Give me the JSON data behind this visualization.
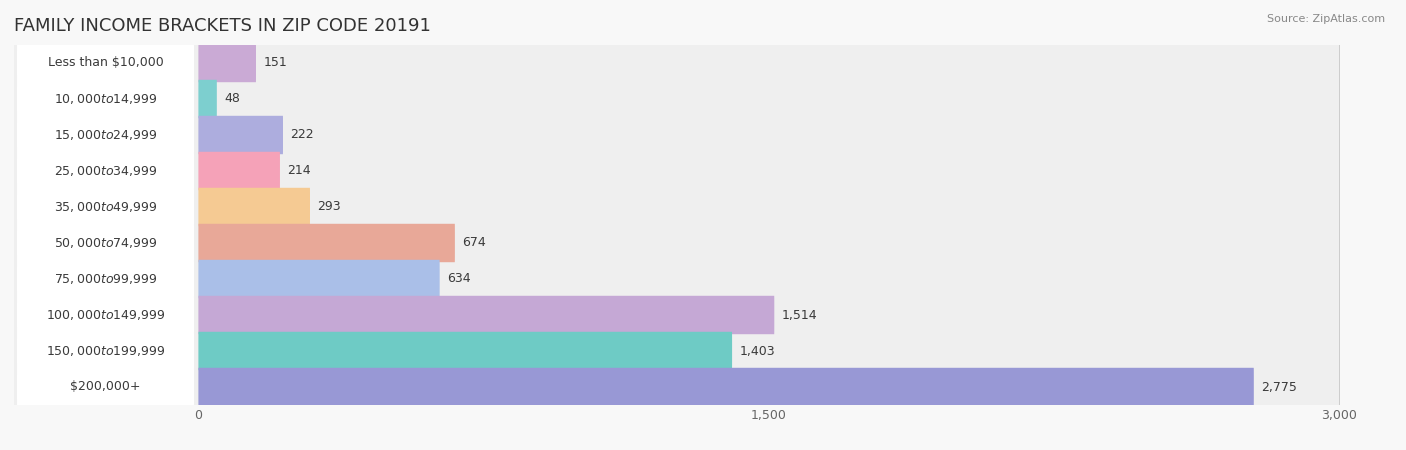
{
  "title": "FAMILY INCOME BRACKETS IN ZIP CODE 20191",
  "source_text": "Source: ZipAtlas.com",
  "categories": [
    "Less than $10,000",
    "$10,000 to $14,999",
    "$15,000 to $24,999",
    "$25,000 to $34,999",
    "$35,000 to $49,999",
    "$50,000 to $74,999",
    "$75,000 to $99,999",
    "$100,000 to $149,999",
    "$150,000 to $199,999",
    "$200,000+"
  ],
  "values": [
    151,
    48,
    222,
    214,
    293,
    674,
    634,
    1514,
    1403,
    2775
  ],
  "bar_colors": [
    "#caaad5",
    "#7dcfcf",
    "#adadde",
    "#f5a2b8",
    "#f5ca93",
    "#e8a898",
    "#aabfe8",
    "#c5a8d5",
    "#6ecbc5",
    "#9898d5"
  ],
  "row_bg_color": "#efefef",
  "background_color": "#f8f8f8",
  "xlim_max": 3000,
  "xticks": [
    0,
    1500,
    3000
  ],
  "title_fontsize": 13,
  "label_fontsize": 9,
  "value_fontsize": 9,
  "tick_fontsize": 9,
  "source_fontsize": 8
}
